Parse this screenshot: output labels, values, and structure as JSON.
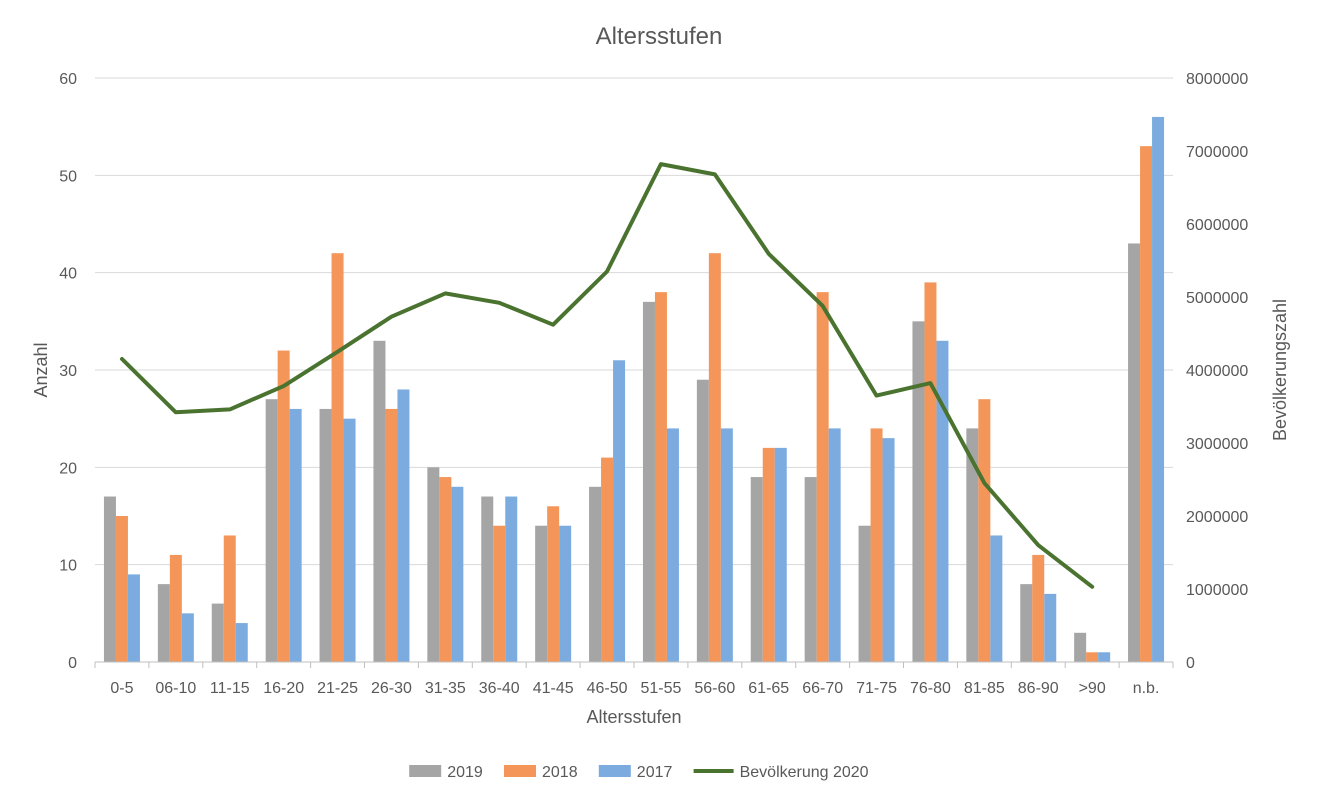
{
  "chart_data": {
    "type": "bar",
    "title": "Altersstufen",
    "xlabel": "Altersstufen",
    "ylabel": "Anzahl",
    "y2label": "Bevölkerungszahl",
    "ylim": [
      0,
      60
    ],
    "y2lim": [
      0,
      8000000
    ],
    "yticks": [
      0,
      10,
      20,
      30,
      40,
      50,
      60
    ],
    "y2ticks": [
      0,
      1000000,
      2000000,
      3000000,
      4000000,
      5000000,
      6000000,
      7000000,
      8000000
    ],
    "grid": true,
    "legend_position": "bottom",
    "categories": [
      "0-5",
      "06-10",
      "11-15",
      "16-20",
      "21-25",
      "26-30",
      "31-35",
      "36-40",
      "41-45",
      "46-50",
      "51-55",
      "56-60",
      "61-65",
      "66-70",
      "71-75",
      "76-80",
      "81-85",
      "86-90",
      ">90",
      "n.b."
    ],
    "series": [
      {
        "name": "2019",
        "type": "bar",
        "axis": "left",
        "color": "#a5a5a5",
        "values": [
          17,
          8,
          6,
          27,
          26,
          33,
          20,
          17,
          14,
          18,
          37,
          29,
          19,
          19,
          14,
          35,
          24,
          8,
          3,
          43
        ]
      },
      {
        "name": "2018",
        "type": "bar",
        "axis": "left",
        "color": "#f4965a",
        "values": [
          15,
          11,
          13,
          32,
          42,
          26,
          19,
          14,
          16,
          21,
          38,
          42,
          22,
          38,
          24,
          39,
          27,
          11,
          1,
          53
        ]
      },
      {
        "name": "2017",
        "type": "bar",
        "axis": "left",
        "color": "#7cacdf",
        "values": [
          9,
          5,
          4,
          26,
          25,
          28,
          18,
          17,
          14,
          31,
          24,
          24,
          22,
          24,
          23,
          33,
          13,
          7,
          1,
          56
        ]
      },
      {
        "name": "Bevölkerung 2020",
        "type": "line",
        "axis": "right",
        "color": "#4a7330",
        "values": [
          4150000,
          3420000,
          3460000,
          3780000,
          4250000,
          4730000,
          5050000,
          4920000,
          4620000,
          5350000,
          6820000,
          6680000,
          5590000,
          4880000,
          3650000,
          3820000,
          2450000,
          1600000,
          1030000,
          null
        ]
      }
    ]
  }
}
